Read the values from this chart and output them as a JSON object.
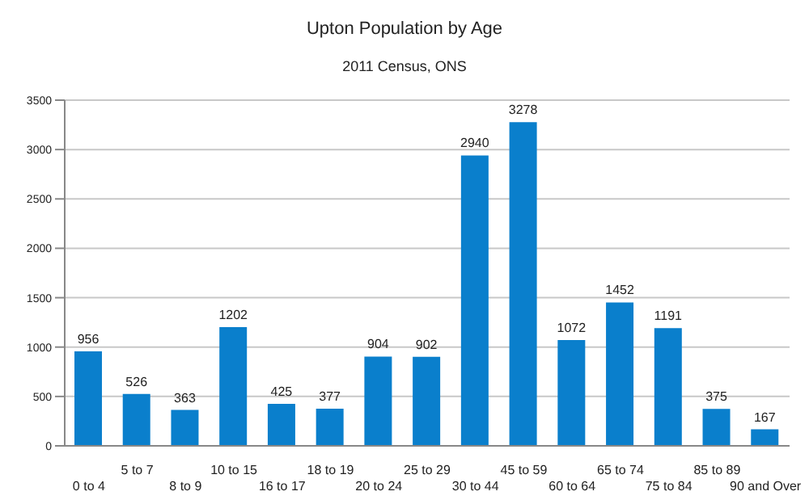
{
  "chart_data": {
    "type": "bar",
    "title": "Upton Population by Age",
    "subtitle": "2011 Census, ONS",
    "categories": [
      "0 to 4",
      "5 to 7",
      "8 to 9",
      "10 to 15",
      "16 to 17",
      "18 to 19",
      "20 to 24",
      "25 to 29",
      "30 to 44",
      "45 to 59",
      "60 to 64",
      "65 to 74",
      "75 to 84",
      "85 to 89",
      "90 and Over"
    ],
    "values": [
      956,
      526,
      363,
      1202,
      425,
      377,
      904,
      902,
      2940,
      3278,
      1072,
      1452,
      1191,
      375,
      167
    ],
    "color": "#0a7fcc",
    "ylim": [
      0,
      3500
    ],
    "yticks": [
      0,
      500,
      1000,
      1500,
      2000,
      2500,
      3000,
      3500
    ],
    "grid": "y",
    "data_labels": true,
    "legend": false
  }
}
